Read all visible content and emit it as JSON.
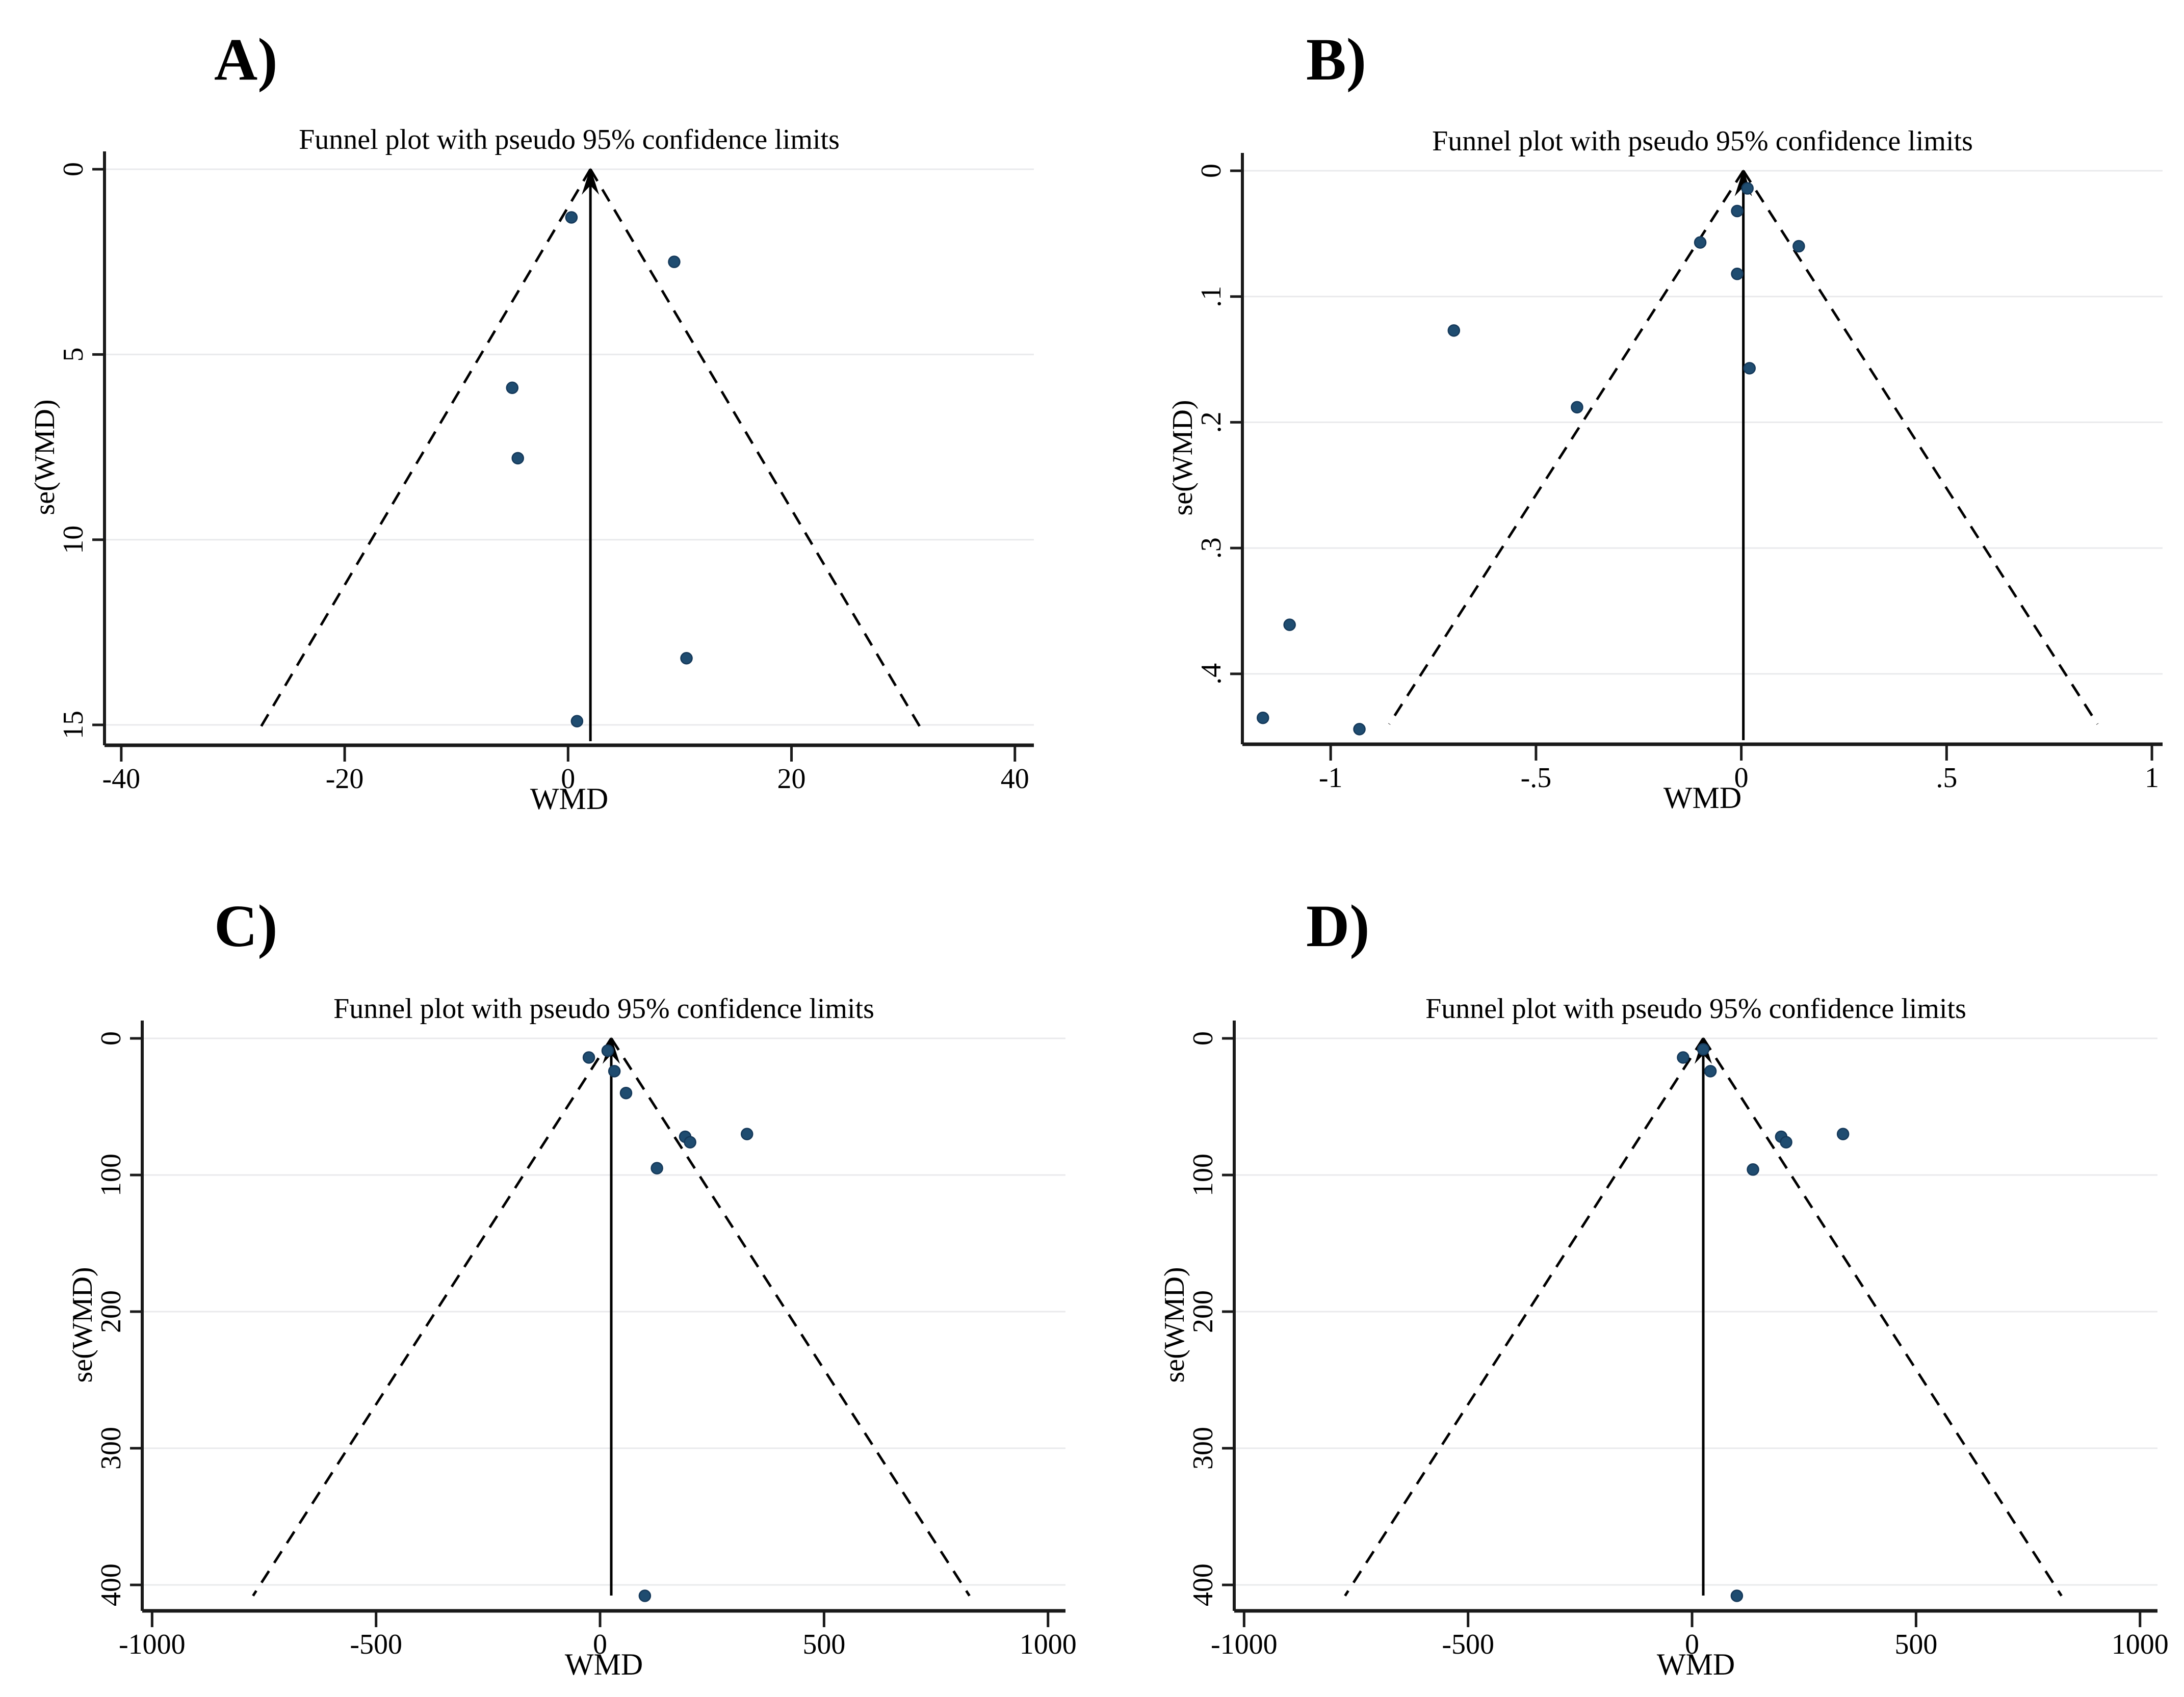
{
  "figure": {
    "background": "#ffffff",
    "colors": {
      "marker": "#1f4c70",
      "marker_edge": "#15395a",
      "grid": "#e9eaec",
      "axis": "#1a1a1a",
      "line": "#000000",
      "text": "#000000"
    },
    "marker_radius": 11
  },
  "chart_data": [
    {
      "id": "A",
      "panel_label": "A)",
      "type": "scatter",
      "title": "Funnel plot with pseudo 95% confidence limits",
      "xlabel": "WMD",
      "ylabel": "se(WMD)",
      "xlim": [
        -41.5,
        41.7
      ],
      "ylim": [
        0,
        15.55
      ],
      "x_ticks": [
        {
          "v": -40,
          "label": "-40"
        },
        {
          "v": -20,
          "label": "-20"
        },
        {
          "v": 0,
          "label": "0"
        },
        {
          "v": 20,
          "label": "20"
        },
        {
          "v": 40,
          "label": "40"
        }
      ],
      "y_ticks": [
        {
          "v": 0,
          "label": "0"
        },
        {
          "v": 5,
          "label": "5"
        },
        {
          "v": 10,
          "label": "10"
        },
        {
          "v": 15,
          "label": "15"
        }
      ],
      "grid": true,
      "pooled_center": 2.0,
      "ci_multiplier": 1.96,
      "funnel_se_end": 15.1,
      "points": [
        [
          0.3,
          1.3
        ],
        [
          9.5,
          2.5
        ],
        [
          -5.0,
          5.9
        ],
        [
          -4.5,
          7.8
        ],
        [
          10.6,
          13.2
        ],
        [
          0.8,
          14.9
        ]
      ]
    },
    {
      "id": "B",
      "panel_label": "B)",
      "type": "scatter",
      "title": "Funnel plot with pseudo 95% confidence limits",
      "xlabel": "WMD",
      "ylabel": "se(WMD)",
      "xlim": [
        -1.215,
        1.026
      ],
      "ylim": [
        0,
        0.456
      ],
      "x_ticks": [
        {
          "v": -1,
          "label": "-1"
        },
        {
          "v": -0.5,
          "label": "-.5"
        },
        {
          "v": 0,
          "label": "0"
        },
        {
          "v": 0.5,
          "label": ".5"
        },
        {
          "v": 1,
          "label": "1"
        }
      ],
      "y_ticks": [
        {
          "v": 0,
          "label": "0"
        },
        {
          "v": 0.1,
          "label": ".1"
        },
        {
          "v": 0.2,
          "label": ".2"
        },
        {
          "v": 0.3,
          "label": ".3"
        },
        {
          "v": 0.4,
          "label": ".4"
        }
      ],
      "grid": true,
      "pooled_center": 0.005,
      "ci_multiplier": 1.96,
      "funnel_se_end": 0.44,
      "points": [
        [
          0.015,
          0.014
        ],
        [
          -0.01,
          0.032
        ],
        [
          -0.1,
          0.057
        ],
        [
          0.14,
          0.06
        ],
        [
          -0.01,
          0.082
        ],
        [
          -0.7,
          0.127
        ],
        [
          0.02,
          0.157
        ],
        [
          -0.4,
          0.188
        ],
        [
          -1.1,
          0.361
        ],
        [
          -1.165,
          0.435
        ],
        [
          -0.93,
          0.444
        ]
      ]
    },
    {
      "id": "C",
      "panel_label": "C)",
      "type": "scatter",
      "title": "Funnel plot with pseudo 95% confidence limits",
      "xlabel": "WMD",
      "ylabel": "se(WMD)",
      "xlim": [
        -1022,
        1039
      ],
      "ylim": [
        0,
        419
      ],
      "x_ticks": [
        {
          "v": -1000,
          "label": "-1000"
        },
        {
          "v": -500,
          "label": "-500"
        },
        {
          "v": 0,
          "label": "0"
        },
        {
          "v": 500,
          "label": "500"
        },
        {
          "v": 1000,
          "label": "1000"
        }
      ],
      "y_ticks": [
        {
          "v": 0,
          "label": "0"
        },
        {
          "v": 100,
          "label": "100"
        },
        {
          "v": 200,
          "label": "200"
        },
        {
          "v": 300,
          "label": "300"
        },
        {
          "v": 400,
          "label": "400"
        }
      ],
      "grid": true,
      "pooled_center": 25,
      "ci_multiplier": 1.96,
      "funnel_se_end": 408,
      "points": [
        [
          -25,
          14
        ],
        [
          17,
          9
        ],
        [
          32,
          24
        ],
        [
          58,
          40
        ],
        [
          190,
          72
        ],
        [
          201,
          76
        ],
        [
          328,
          70
        ],
        [
          127,
          95
        ],
        [
          100,
          408
        ]
      ]
    },
    {
      "id": "D",
      "panel_label": "D)",
      "type": "scatter",
      "title": "Funnel plot with pseudo 95% confidence limits",
      "xlabel": "WMD",
      "ylabel": "se(WMD)",
      "xlim": [
        -1022,
        1039
      ],
      "ylim": [
        0,
        419
      ],
      "x_ticks": [
        {
          "v": -1000,
          "label": "-1000"
        },
        {
          "v": -500,
          "label": "-500"
        },
        {
          "v": 0,
          "label": "0"
        },
        {
          "v": 500,
          "label": "500"
        },
        {
          "v": 1000,
          "label": "1000"
        }
      ],
      "y_ticks": [
        {
          "v": 0,
          "label": "0"
        },
        {
          "v": 100,
          "label": "100"
        },
        {
          "v": 200,
          "label": "200"
        },
        {
          "v": 300,
          "label": "300"
        },
        {
          "v": 400,
          "label": "400"
        }
      ],
      "grid": true,
      "pooled_center": 25,
      "ci_multiplier": 1.96,
      "funnel_se_end": 408,
      "points": [
        [
          -20,
          14
        ],
        [
          25,
          8
        ],
        [
          41,
          24
        ],
        [
          199,
          72
        ],
        [
          210,
          76
        ],
        [
          337,
          70
        ],
        [
          136,
          96
        ],
        [
          100,
          408
        ]
      ]
    }
  ]
}
